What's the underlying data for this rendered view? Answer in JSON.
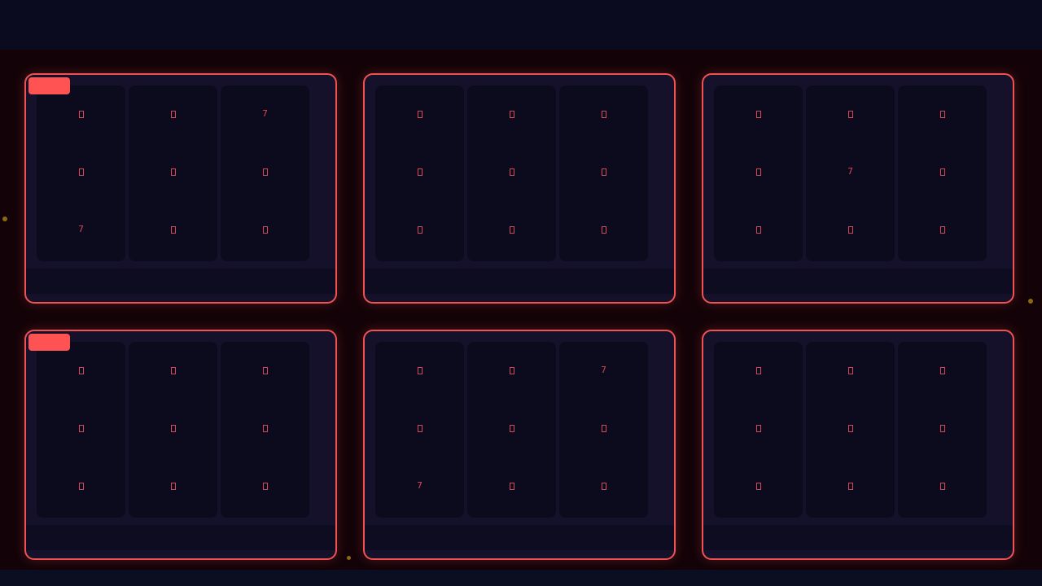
{
  "colors": {
    "accent": "#f05252",
    "badge": "#ff5252",
    "background": "#130308",
    "card": "#15112b",
    "reel": "#0b0b1d"
  },
  "symbol_legend": {
    "box": "missing-glyph",
    "7": "7"
  },
  "machines": [
    {
      "badge": true,
      "grid": [
        [
          "box",
          "box",
          "7"
        ],
        [
          "box",
          "box",
          "box"
        ],
        [
          "7",
          "box",
          "box"
        ]
      ]
    },
    {
      "badge": false,
      "grid": [
        [
          "box",
          "box",
          "box"
        ],
        [
          "box",
          "box",
          "box"
        ],
        [
          "box",
          "box",
          "box"
        ]
      ]
    },
    {
      "badge": false,
      "grid": [
        [
          "box",
          "box",
          "box"
        ],
        [
          "box",
          "7",
          "box"
        ],
        [
          "box",
          "box",
          "box"
        ]
      ]
    },
    {
      "badge": true,
      "grid": [
        [
          "box",
          "box",
          "box"
        ],
        [
          "box",
          "box",
          "box"
        ],
        [
          "box",
          "box",
          "box"
        ]
      ]
    },
    {
      "badge": false,
      "grid": [
        [
          "box",
          "box",
          "7"
        ],
        [
          "box",
          "box",
          "box"
        ],
        [
          "7",
          "box",
          "box"
        ]
      ]
    },
    {
      "badge": false,
      "grid": [
        [
          "box",
          "box",
          "box"
        ],
        [
          "box",
          "box",
          "box"
        ],
        [
          "box",
          "box",
          "box"
        ]
      ]
    }
  ]
}
